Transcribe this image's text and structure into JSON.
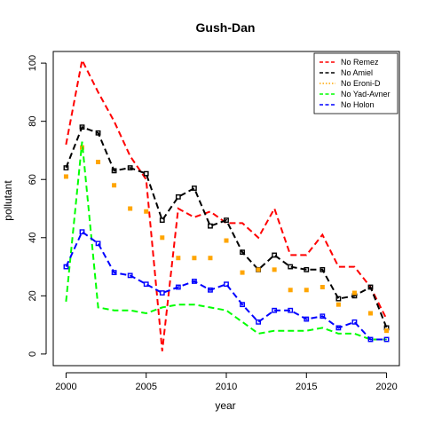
{
  "chart_data": {
    "type": "line",
    "title": "Gush-Dan",
    "xlabel": "year",
    "ylabel": "pollutant",
    "xlim": [
      1999.2,
      2020.8
    ],
    "ylim": [
      -4,
      104
    ],
    "x_ticks": [
      2000,
      2005,
      2010,
      2015,
      2020
    ],
    "y_ticks": [
      0,
      20,
      40,
      60,
      80,
      100
    ],
    "legend_position": "top-right",
    "x": [
      2000,
      2001,
      2002,
      2003,
      2004,
      2005,
      2006,
      2007,
      2008,
      2009,
      2010,
      2011,
      2012,
      2013,
      2014,
      2015,
      2016,
      2017,
      2018,
      2019,
      2020
    ],
    "series": [
      {
        "name": "No Remez",
        "color": "#ff0000",
        "style": "dashed-line",
        "values": [
          72,
          101,
          90,
          80,
          68,
          60,
          1,
          50,
          47,
          49,
          45,
          45,
          40,
          50,
          34,
          34,
          41,
          30,
          30,
          23,
          12
        ]
      },
      {
        "name": "No Amiel",
        "color": "#000000",
        "style": "dashed-line-square",
        "values": [
          64,
          78,
          76,
          63,
          64,
          62,
          46,
          54,
          57,
          44,
          46,
          35,
          29,
          34,
          30,
          29,
          29,
          19,
          20,
          23,
          9
        ]
      },
      {
        "name": "No Eroni-D",
        "color": "#ffa500",
        "style": "points",
        "values": [
          61,
          71,
          66,
          58,
          50,
          49,
          40,
          33,
          33,
          33,
          39,
          28,
          29,
          29,
          22,
          22,
          23,
          17,
          21,
          14,
          8
        ]
      },
      {
        "name": "No Yad-Avner",
        "color": "#00ff00",
        "style": "dashed-line",
        "values": [
          18,
          73,
          16,
          15,
          15,
          14,
          16,
          17,
          17,
          16,
          15,
          11,
          7,
          8,
          8,
          8,
          9,
          7,
          7,
          5,
          5
        ]
      },
      {
        "name": "No Holon",
        "color": "#0000ff",
        "style": "dashed-line-square",
        "values": [
          30,
          42,
          38,
          28,
          27,
          24,
          21,
          23,
          25,
          22,
          24,
          17,
          11,
          15,
          15,
          12,
          13,
          9,
          11,
          5,
          5
        ]
      }
    ]
  }
}
